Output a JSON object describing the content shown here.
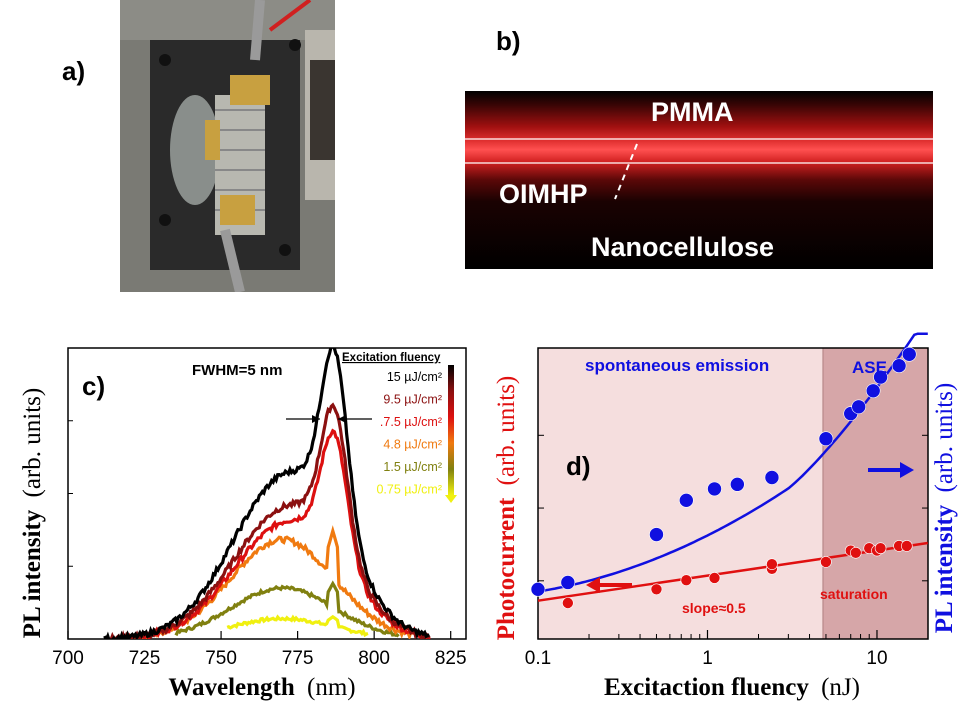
{
  "panels": {
    "a": "a)",
    "b": "b)",
    "c": "c)",
    "d": "d)"
  },
  "micrograph": {
    "layer_top": "PMMA",
    "layer_middle": "OIMHP",
    "layer_bottom": "Nanocellulose"
  },
  "chart_data": [
    {
      "type": "line",
      "panel": "c",
      "xlabel_bold": "Wavelength",
      "xlabel_unit": "(nm)",
      "ylabel_bold": "PL intensity",
      "ylabel_unit": "(arb. units)",
      "xticks": [
        "700",
        "725",
        "750",
        "775",
        "800",
        "825"
      ],
      "xlim": [
        700,
        830
      ],
      "ylim": [
        0,
        1.05
      ],
      "annotation": "FWHM=5 nm",
      "legend_title": "Excitation fluency",
      "legend_placement": "top-right",
      "series": [
        {
          "name": "15 µJ/cm²",
          "color": "#000000",
          "peak": 1.0,
          "x_range": [
            712,
            818
          ]
        },
        {
          "name": "9.5 µJ/cm²",
          "color": "#8b1010",
          "peak": 0.8,
          "x_range": [
            714,
            818
          ]
        },
        {
          "name": ".7.5 µJ/cm²",
          "color": "#dd1010",
          "peak": 0.71,
          "x_range": [
            716,
            818
          ]
        },
        {
          "name": "4.8 µJ/cm²",
          "color": "#f07a10",
          "peak": 0.39,
          "x_range": [
            722,
            813
          ]
        },
        {
          "name": "1.5 µJ/cm²",
          "color": "#808010",
          "peak": 0.2,
          "x_range": [
            735,
            808
          ]
        },
        {
          "name": "0.75 µJ/cm²",
          "color": "#f0f010",
          "peak": 0.08,
          "x_range": [
            752,
            798
          ]
        }
      ]
    },
    {
      "type": "scatter",
      "panel": "d",
      "xscale": "log",
      "xlim": [
        0.1,
        20
      ],
      "xticks": [
        "0.1",
        "1",
        "10"
      ],
      "xlabel_bold": "Excitaction fluency",
      "xlabel_unit": "(nJ)",
      "ylabel_left_bold": "Photocurrent",
      "ylabel_left_unit": "(arb. units)",
      "ylabel_right_bold": "PL intensity",
      "ylabel_right_unit": "(arb. units)",
      "regions": {
        "left": "spontaneous emission",
        "right": "ASE",
        "boundary_x": 4.8
      },
      "annotations": {
        "slope": "slope≈0.5",
        "saturation": "saturation"
      },
      "series": [
        {
          "name": "PL intensity",
          "color": "#1010e0",
          "x": [
            0.1,
            0.15,
            0.5,
            0.75,
            1.1,
            1.5,
            2.4,
            5.0,
            7.0,
            7.8,
            9.5,
            10.5,
            13.5,
            15.5
          ],
          "y": [
            0.06,
            0.09,
            0.3,
            0.45,
            0.5,
            0.52,
            0.55,
            0.72,
            0.83,
            0.86,
            0.93,
            0.99,
            1.04,
            1.09
          ]
        },
        {
          "name": "Photocurrent",
          "color": "#e01010",
          "x": [
            0.15,
            0.5,
            0.75,
            1.1,
            2.4,
            2.4,
            5.0,
            7.0,
            7.5,
            9.0,
            10.0,
            10.5,
            13.5,
            15.0
          ],
          "y": [
            0.0,
            0.06,
            0.1,
            0.11,
            0.15,
            0.17,
            0.18,
            0.23,
            0.22,
            0.24,
            0.23,
            0.24,
            0.25,
            0.25
          ]
        }
      ]
    }
  ]
}
